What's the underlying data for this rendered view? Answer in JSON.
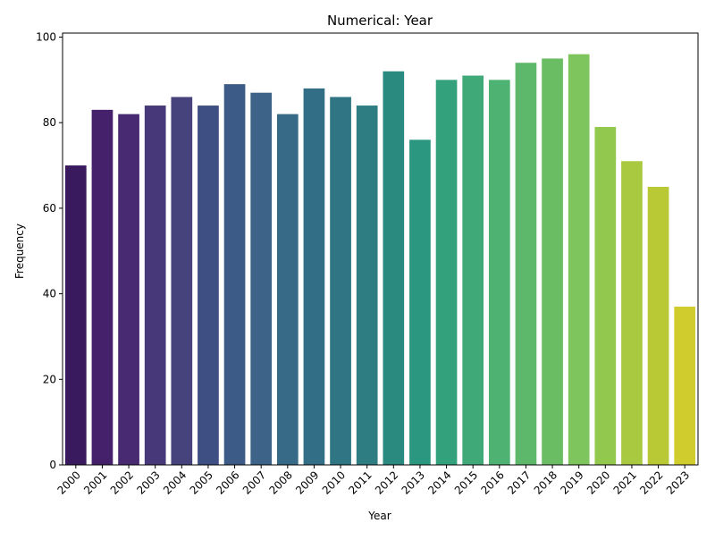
{
  "chart_data": {
    "type": "bar",
    "title": "Numerical: Year",
    "xlabel": "Year",
    "ylabel": "Frequency",
    "ylim": [
      0,
      100
    ],
    "yticks": [
      "0",
      "20",
      "40",
      "60",
      "80",
      "100"
    ],
    "categories": [
      "2000",
      "2001",
      "2002",
      "2003",
      "2004",
      "2005",
      "2006",
      "2007",
      "2008",
      "2009",
      "2010",
      "2011",
      "2012",
      "2013",
      "2014",
      "2015",
      "2016",
      "2017",
      "2018",
      "2019",
      "2020",
      "2021",
      "2022",
      "2023"
    ],
    "values": [
      70,
      83,
      82,
      84,
      86,
      84,
      89,
      87,
      82,
      88,
      86,
      84,
      92,
      76,
      90,
      91,
      90,
      94,
      95,
      96,
      79,
      71,
      65,
      37
    ],
    "colors": [
      "#3a1a5e",
      "#45206b",
      "#472a72",
      "#463879",
      "#46427c",
      "#3e5083",
      "#3c5b87",
      "#3d6388",
      "#376a86",
      "#326f87",
      "#2f7584",
      "#2d7d83",
      "#2a8a80",
      "#2b9780",
      "#33a17b",
      "#40a978",
      "#4db272",
      "#5db86b",
      "#6bbd63",
      "#7ec55e",
      "#93c84e",
      "#a8c940",
      "#b9c835",
      "#d1cc2e"
    ],
    "grid": false,
    "legend": "none"
  }
}
